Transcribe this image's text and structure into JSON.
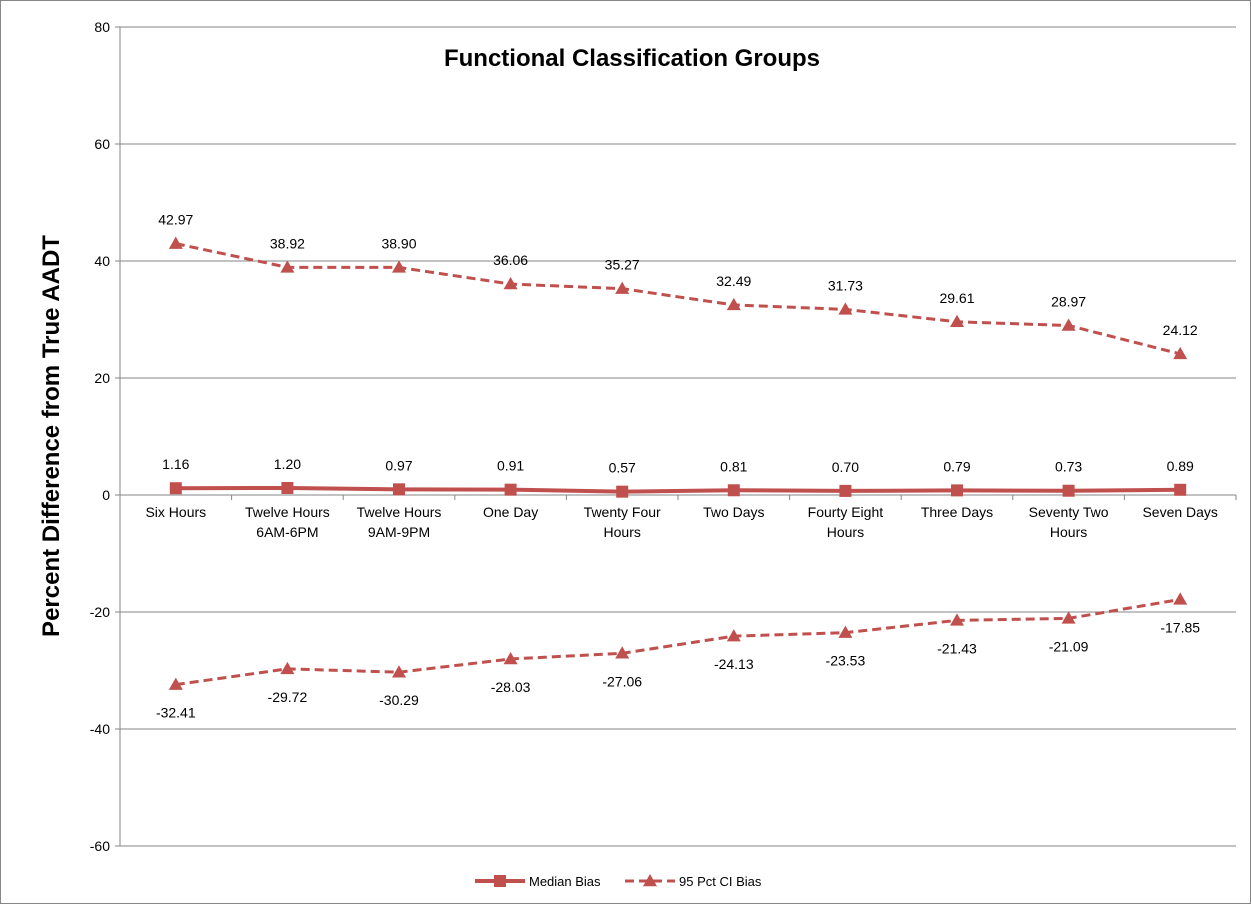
{
  "chart_data": {
    "type": "line",
    "title": "Functional Classification Groups",
    "xlabel": "",
    "ylabel": "Percent Difference from True AADT",
    "ylim": [
      -60,
      80
    ],
    "yticks": [
      -60,
      -40,
      -20,
      0,
      20,
      40,
      60,
      80
    ],
    "grid": true,
    "legend_position": "bottom",
    "categories": [
      [
        "Six Hours"
      ],
      [
        "Twelve Hours",
        "6AM-6PM"
      ],
      [
        "Twelve Hours",
        "9AM-9PM"
      ],
      [
        "One Day"
      ],
      [
        "Twenty Four",
        "Hours"
      ],
      [
        "Two Days"
      ],
      [
        "Fourty Eight",
        "Hours"
      ],
      [
        "Three Days"
      ],
      [
        "Seventy Two",
        "Hours"
      ],
      [
        "Seven Days"
      ]
    ],
    "series": [
      {
        "name": "Median Bias",
        "color": "#c0504d",
        "marker": "square",
        "dash": false,
        "values": [
          1.16,
          1.2,
          0.97,
          0.91,
          0.57,
          0.81,
          0.7,
          0.79,
          0.73,
          0.89
        ],
        "labels": [
          "1.16",
          "1.20",
          "0.97",
          "0.91",
          "0.57",
          "0.81",
          "0.70",
          "0.79",
          "0.73",
          "0.89"
        ],
        "label_position": "above"
      },
      {
        "name": "95 Pct CI Bias",
        "color": "#c0504d",
        "marker": "triangle",
        "dash": true,
        "values": [
          42.97,
          38.92,
          38.9,
          36.06,
          35.27,
          32.49,
          31.73,
          29.61,
          28.97,
          24.12
        ],
        "labels": [
          "42.97",
          "38.92",
          "38.90",
          "36.06",
          "35.27",
          "32.49",
          "31.73",
          "29.61",
          "28.97",
          "24.12"
        ],
        "label_position": "above"
      },
      {
        "name": "",
        "color": "#c0504d",
        "marker": "triangle",
        "dash": true,
        "values": [
          -32.41,
          -29.72,
          -30.29,
          -28.03,
          -27.06,
          -24.13,
          -23.53,
          -21.43,
          -21.09,
          -17.85
        ],
        "labels": [
          "-32.41",
          "-29.72",
          "-30.29",
          "-28.03",
          "-27.06",
          "-24.13",
          "-23.53",
          "-21.43",
          "-21.09",
          "-17.85"
        ],
        "label_position": "below"
      }
    ],
    "legend": [
      {
        "label": "Median Bias",
        "marker": "square",
        "dash": false
      },
      {
        "label": "95 Pct CI Bias",
        "marker": "triangle",
        "dash": true
      }
    ]
  }
}
